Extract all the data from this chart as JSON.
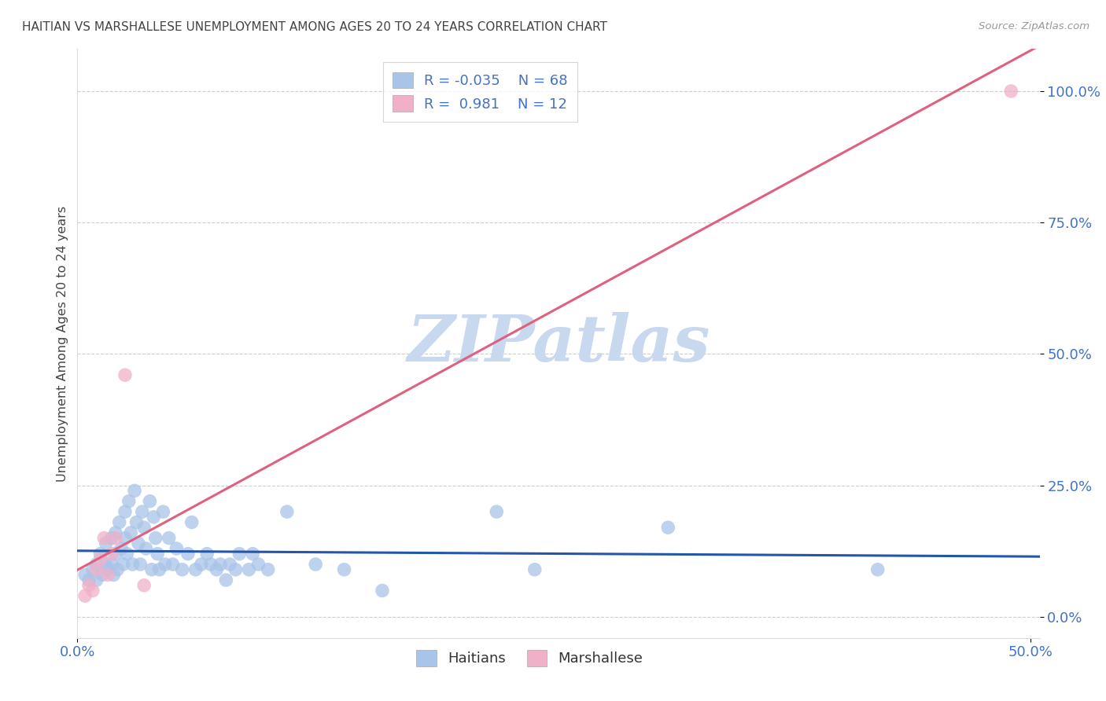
{
  "title": "HAITIAN VS MARSHALLESE UNEMPLOYMENT AMONG AGES 20 TO 24 YEARS CORRELATION CHART",
  "source": "Source: ZipAtlas.com",
  "ylabel": "Unemployment Among Ages 20 to 24 years",
  "xlim": [
    0.0,
    0.505
  ],
  "ylim": [
    -0.04,
    1.08
  ],
  "yticks": [
    0.0,
    0.25,
    0.5,
    0.75,
    1.0
  ],
  "ytick_labels": [
    "0.0%",
    "25.0%",
    "50.0%",
    "75.0%",
    "100.0%"
  ],
  "xticks": [
    0.0,
    0.5
  ],
  "xtick_labels": [
    "0.0%",
    "50.0%"
  ],
  "legend_R1": "-0.035",
  "legend_N1": "68",
  "legend_R2": "0.981",
  "legend_N2": "12",
  "haitian_x": [
    0.004,
    0.006,
    0.008,
    0.01,
    0.01,
    0.012,
    0.013,
    0.015,
    0.015,
    0.016,
    0.018,
    0.018,
    0.019,
    0.02,
    0.02,
    0.021,
    0.022,
    0.023,
    0.024,
    0.025,
    0.025,
    0.026,
    0.027,
    0.028,
    0.029,
    0.03,
    0.031,
    0.032,
    0.033,
    0.034,
    0.035,
    0.036,
    0.038,
    0.039,
    0.04,
    0.041,
    0.042,
    0.043,
    0.045,
    0.046,
    0.048,
    0.05,
    0.052,
    0.055,
    0.058,
    0.06,
    0.062,
    0.065,
    0.068,
    0.07,
    0.073,
    0.075,
    0.078,
    0.08,
    0.083,
    0.085,
    0.09,
    0.092,
    0.095,
    0.1,
    0.11,
    0.125,
    0.14,
    0.16,
    0.22,
    0.24,
    0.31,
    0.42
  ],
  "haitian_y": [
    0.08,
    0.07,
    0.09,
    0.1,
    0.07,
    0.12,
    0.08,
    0.14,
    0.1,
    0.09,
    0.15,
    0.1,
    0.08,
    0.16,
    0.12,
    0.09,
    0.18,
    0.13,
    0.1,
    0.2,
    0.15,
    0.12,
    0.22,
    0.16,
    0.1,
    0.24,
    0.18,
    0.14,
    0.1,
    0.2,
    0.17,
    0.13,
    0.22,
    0.09,
    0.19,
    0.15,
    0.12,
    0.09,
    0.2,
    0.1,
    0.15,
    0.1,
    0.13,
    0.09,
    0.12,
    0.18,
    0.09,
    0.1,
    0.12,
    0.1,
    0.09,
    0.1,
    0.07,
    0.1,
    0.09,
    0.12,
    0.09,
    0.12,
    0.1,
    0.09,
    0.2,
    0.1,
    0.09,
    0.05,
    0.2,
    0.09,
    0.17,
    0.09
  ],
  "marshallese_x": [
    0.004,
    0.006,
    0.008,
    0.01,
    0.012,
    0.014,
    0.016,
    0.018,
    0.02,
    0.025,
    0.035,
    0.49
  ],
  "marshallese_y": [
    0.04,
    0.06,
    0.05,
    0.09,
    0.11,
    0.15,
    0.08,
    0.12,
    0.15,
    0.46,
    0.06,
    1.0
  ],
  "haitian_trend_color": "#2457a8",
  "marshallese_trend_color": "#e06080",
  "haitian_dot_color": "#a8c4e8",
  "marshallese_dot_color": "#f0b0c8",
  "background_color": "#ffffff",
  "grid_color": "#c8c8c8",
  "title_color": "#444444",
  "axis_label_color": "#444444",
  "tick_color": "#4472c4",
  "watermark_color": "#c8d8ee"
}
